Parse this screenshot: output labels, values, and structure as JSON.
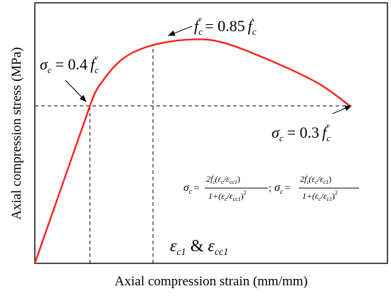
{
  "chart_data": {
    "type": "line",
    "title": "",
    "xlabel": "Axial compression strain (mm/mm)",
    "ylabel": "Axial compression stress (MPa)",
    "xlim": [
      0,
      1
    ],
    "ylim": [
      0,
      1
    ],
    "grid": false,
    "axis_ticks": false,
    "colors": {
      "curve": "#ff1f1f",
      "axes": "#000000",
      "guides": "#000000"
    },
    "series": [
      {
        "x": [
          0,
          0.175,
          0.21,
          0.28,
          0.375,
          0.5,
          0.6,
          0.75,
          0.9,
          1.0
        ],
        "y": [
          0,
          0.7,
          0.8,
          0.91,
          0.97,
          0.995,
          0.98,
          0.9,
          0.8,
          0.7
        ]
      }
    ],
    "reference_lines": [
      {
        "kind": "horizontal",
        "y": 0.7,
        "x_from": 0,
        "x_to": 1.0,
        "style": "dashed"
      },
      {
        "kind": "vertical",
        "x": 0.175,
        "y_from": 0,
        "y_to": 0.7,
        "style": "dashed"
      },
      {
        "kind": "vertical",
        "x": 0.375,
        "y_from": 0,
        "y_to": 0.97,
        "style": "dashed"
      }
    ],
    "annotations": {
      "peak": {
        "lhs": "f",
        "sub": "c",
        "prime": "\"",
        "rhs": "= 0.85",
        "rhs_f": "f",
        "rhs_sub": "c",
        "rhs_prime": "'"
      },
      "rising": {
        "lhs": "σ",
        "sub": "c",
        "rhs": "= 0.4",
        "rhs_f": "f",
        "rhs_sub": "c",
        "rhs_prime": "\""
      },
      "falling": {
        "lhs": "σ",
        "sub": "c",
        "rhs": "= 0.3",
        "rhs_f": "f",
        "rhs_sub": "c",
        "rhs_prime": "\""
      },
      "strain": {
        "e1": "ε",
        "e1_sub": "c1",
        "amp": "&",
        "e2": "ε",
        "e2_sub": "cc1"
      },
      "formula": {
        "left": "σ",
        "left_sub": "c",
        "eq": "=",
        "num1": "2f",
        "num1_sub": "c",
        "num1_prime": "'",
        "num1_paren": "(ε",
        "num1_a_sub": "c",
        "num1_slash": "/ε",
        "num1_b_sub": "cc1",
        "num1_close": ")",
        "den1": "1+(ε",
        "den1_a_sub": "c",
        "den1_slash": "/ε",
        "den1_b_sub": "cc1",
        "den1_close": ")",
        "den1_sup": "2",
        "sep": ";",
        "right": "σ",
        "right_sub": "c",
        "eq2": "=",
        "num2": "2f",
        "num2_sub": "c",
        "num2_prime": "'",
        "num2_paren": "(ε",
        "num2_a_sub": "c",
        "num2_slash": "/ε",
        "num2_b_sub": "c1",
        "num2_close": ")",
        "den2": "1+(ε",
        "den2_a_sub": "c",
        "den2_slash": "/ε",
        "den2_b_sub": "c1",
        "den2_close": ")",
        "den2_sup": "2"
      }
    }
  }
}
